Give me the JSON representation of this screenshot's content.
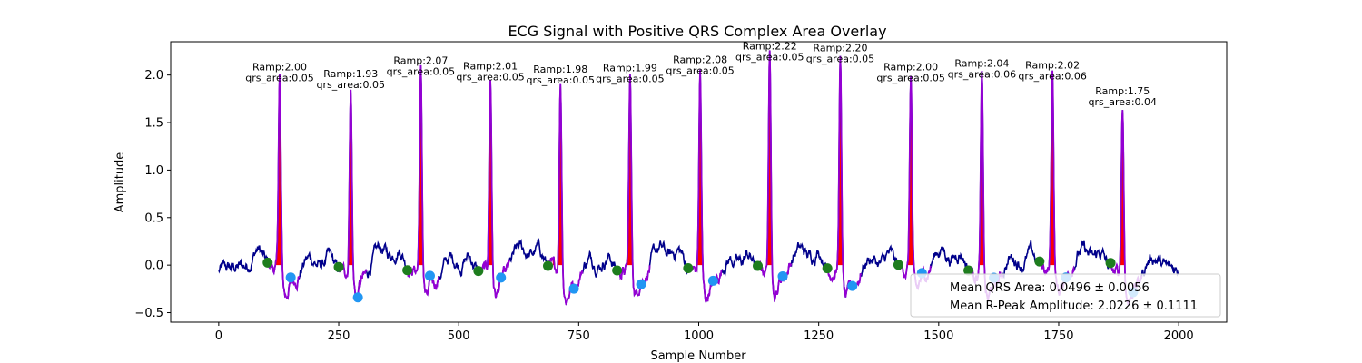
{
  "chart_data": {
    "type": "line",
    "title": "ECG Signal with Positive QRS Complex Area Overlay",
    "xlabel": "Sample Number",
    "ylabel": "Amplitude",
    "xlim": [
      -100,
      2100
    ],
    "ylim": [
      -0.6,
      2.35
    ],
    "xticks": [
      0,
      250,
      500,
      750,
      1000,
      1250,
      1500,
      1750,
      2000
    ],
    "yticks": [
      -0.5,
      0.0,
      0.5,
      1.0,
      1.5,
      2.0
    ],
    "xtick_labels": [
      "0",
      "250",
      "500",
      "750",
      "1000",
      "1250",
      "1500",
      "1750",
      "2000"
    ],
    "ytick_labels": [
      "−0.5",
      "0.0",
      "0.5",
      "1.0",
      "1.5",
      "2.0"
    ],
    "grid": false,
    "legend_position": "lower-right",
    "colors": {
      "signal": "#00008b",
      "qrs_segment": "#9400d3",
      "qrs_fill": "#ff0000",
      "onset_marker": "#1e7d1e",
      "offset_marker": "#2196f3"
    },
    "signal_length": 2000,
    "beats": [
      {
        "r_index": 127,
        "r_amp": 2.0,
        "onset_index": 102,
        "offset_index": 150,
        "qrs_area": 0.05,
        "label_ramp": "Ramp:2.00",
        "label_area": "qrs_area:0.05"
      },
      {
        "r_index": 275,
        "r_amp": 1.93,
        "onset_index": 250,
        "offset_index": 290,
        "qrs_area": 0.05,
        "label_ramp": "Ramp:1.93",
        "label_area": "qrs_area:0.05"
      },
      {
        "r_index": 421,
        "r_amp": 2.07,
        "onset_index": 393,
        "offset_index": 440,
        "qrs_area": 0.05,
        "label_ramp": "Ramp:2.07",
        "label_area": "qrs_area:0.05"
      },
      {
        "r_index": 566,
        "r_amp": 2.01,
        "onset_index": 541,
        "offset_index": 588,
        "qrs_area": 0.05,
        "label_ramp": "Ramp:2.01",
        "label_area": "qrs_area:0.05"
      },
      {
        "r_index": 712,
        "r_amp": 1.98,
        "onset_index": 686,
        "offset_index": 740,
        "qrs_area": 0.05,
        "label_ramp": "Ramp:1.98",
        "label_area": "qrs_area:0.05"
      },
      {
        "r_index": 857,
        "r_amp": 1.99,
        "onset_index": 830,
        "offset_index": 880,
        "qrs_area": 0.05,
        "label_ramp": "Ramp:1.99",
        "label_area": "qrs_area:0.05"
      },
      {
        "r_index": 1003,
        "r_amp": 2.08,
        "onset_index": 978,
        "offset_index": 1030,
        "qrs_area": 0.05,
        "label_ramp": "Ramp:2.08",
        "label_area": "qrs_area:0.05"
      },
      {
        "r_index": 1148,
        "r_amp": 2.22,
        "onset_index": 1123,
        "offset_index": 1175,
        "qrs_area": 0.05,
        "label_ramp": "Ramp:2.22",
        "label_area": "qrs_area:0.05"
      },
      {
        "r_index": 1295,
        "r_amp": 2.2,
        "onset_index": 1268,
        "offset_index": 1320,
        "qrs_area": 0.05,
        "label_ramp": "Ramp:2.20",
        "label_area": "qrs_area:0.05"
      },
      {
        "r_index": 1442,
        "r_amp": 2.0,
        "onset_index": 1416,
        "offset_index": 1465,
        "qrs_area": 0.05,
        "label_ramp": "Ramp:2.00",
        "label_area": "qrs_area:0.05"
      },
      {
        "r_index": 1590,
        "r_amp": 2.04,
        "onset_index": 1562,
        "offset_index": 1615,
        "qrs_area": 0.06,
        "label_ramp": "Ramp:2.04",
        "label_area": "qrs_area:0.06"
      },
      {
        "r_index": 1737,
        "r_amp": 2.02,
        "onset_index": 1710,
        "offset_index": 1765,
        "qrs_area": 0.06,
        "label_ramp": "Ramp:2.02",
        "label_area": "qrs_area:0.06"
      },
      {
        "r_index": 1883,
        "r_amp": 1.75,
        "onset_index": 1858,
        "offset_index": 1905,
        "qrs_area": 0.04,
        "label_ramp": "Ramp:1.75",
        "label_area": "qrs_area:0.04"
      }
    ],
    "legend": [
      {
        "text": "Mean QRS Area: 0.0496 ± 0.0056"
      },
      {
        "text": "Mean R-Peak Amplitude: 2.0226 ± 0.1111"
      }
    ]
  }
}
